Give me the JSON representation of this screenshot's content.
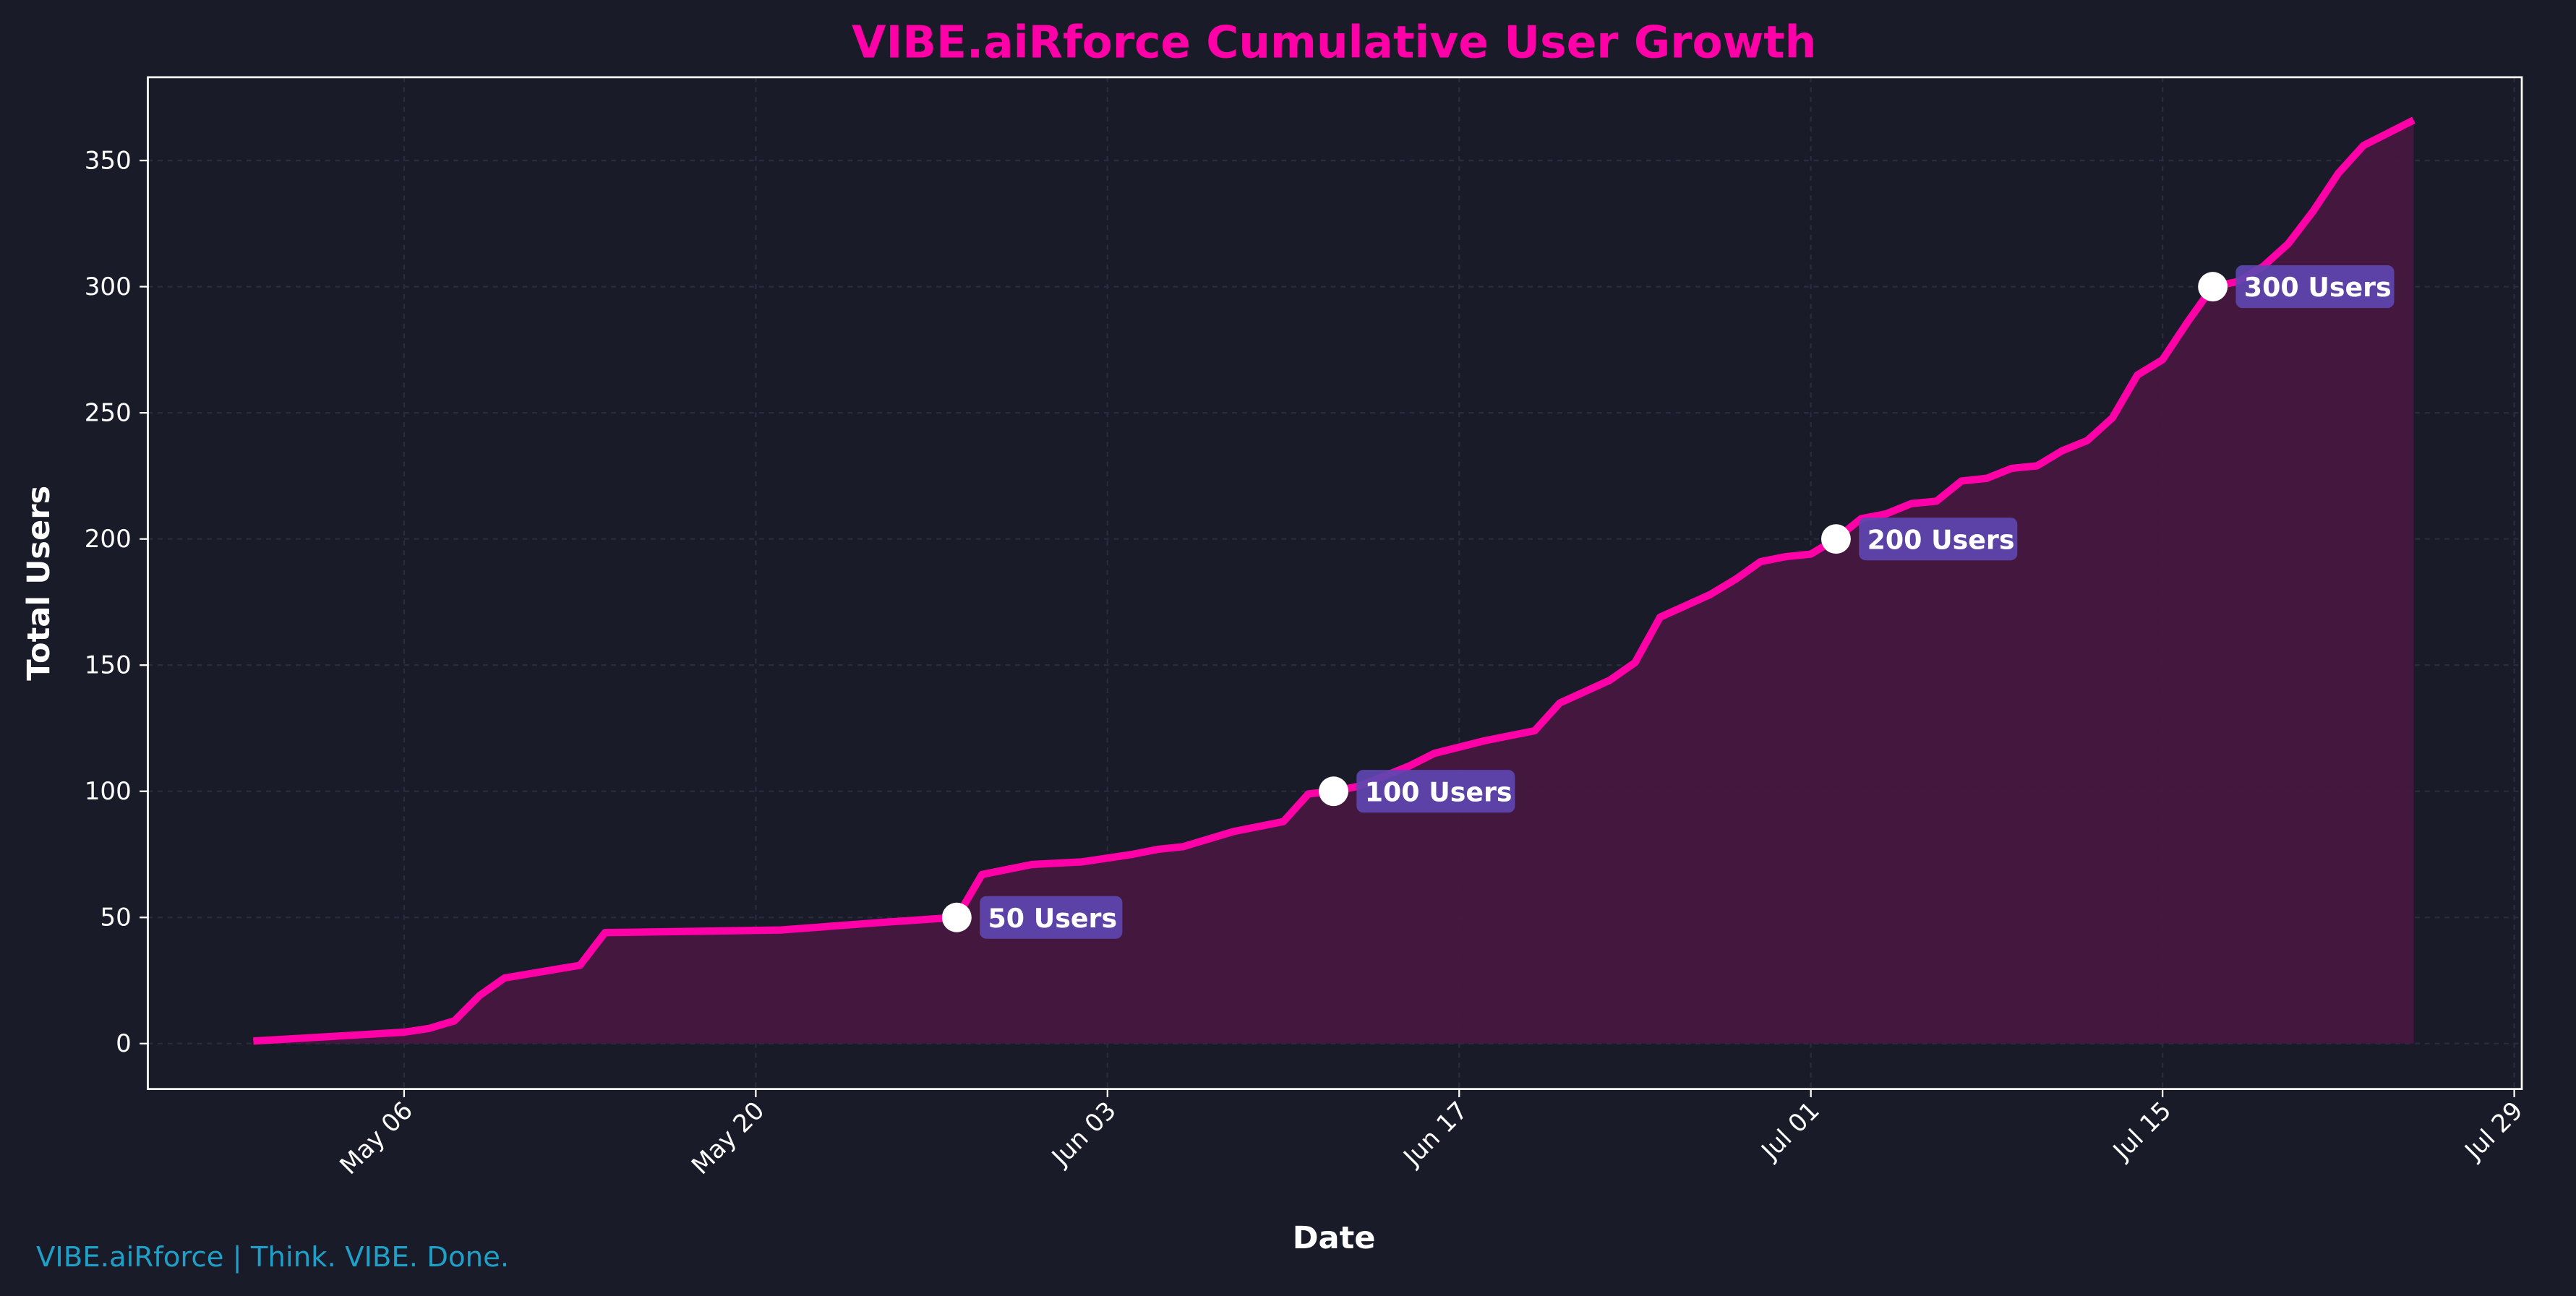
{
  "chart_data": {
    "type": "area",
    "title": "VIBE.aiRforce Cumulative User Growth",
    "xlabel": "Date",
    "ylabel": "Total Users",
    "x_unit": "days since Apr 30",
    "x": [
      0,
      6,
      7,
      8,
      9,
      10,
      13,
      14,
      21,
      25,
      28,
      29,
      31,
      33,
      35,
      36,
      37,
      39,
      41,
      42,
      43,
      44,
      46,
      47,
      49,
      51,
      52,
      54,
      55,
      56,
      58,
      59,
      60,
      61,
      62,
      63,
      64,
      65,
      66,
      67,
      68,
      69,
      70,
      71,
      72,
      73,
      74,
      75,
      76,
      77,
      78,
      79,
      80,
      81,
      82,
      83,
      84,
      85,
      86
    ],
    "values": [
      1,
      4.5,
      6,
      9,
      19,
      26,
      31,
      44,
      45,
      48,
      50,
      67,
      71,
      72,
      75,
      77,
      78,
      84,
      88,
      99,
      100,
      102,
      110,
      115,
      120,
      124,
      135,
      144,
      151,
      169,
      178,
      184,
      191,
      193,
      194,
      200,
      208,
      210,
      214,
      215,
      223,
      224,
      228,
      229,
      235,
      239,
      248,
      265,
      271,
      286,
      300,
      302,
      308,
      317,
      330,
      345,
      356,
      361,
      366
    ],
    "xlim": [
      -4.2,
      90.3
    ],
    "ylim": [
      -18,
      383
    ],
    "xticks": [
      {
        "x": 6,
        "label": "May 06"
      },
      {
        "x": 20,
        "label": "May 20"
      },
      {
        "x": 34,
        "label": "Jun 03"
      },
      {
        "x": 48,
        "label": "Jun 17"
      },
      {
        "x": 62,
        "label": "Jul 01"
      },
      {
        "x": 76,
        "label": "Jul 15"
      },
      {
        "x": 90,
        "label": "Jul 29"
      }
    ],
    "yticks": [
      0,
      50,
      100,
      150,
      200,
      250,
      300,
      350
    ],
    "grid": true,
    "milestones": [
      {
        "x": 28,
        "y": 50,
        "label": "50 Users"
      },
      {
        "x": 43,
        "y": 100,
        "label": "100 Users"
      },
      {
        "x": 63,
        "y": 200,
        "label": "200 Users"
      },
      {
        "x": 78,
        "y": 300,
        "label": "300 Users"
      }
    ],
    "colors": {
      "background": "#1a1b29",
      "line": "#ff00a8",
      "fill": "#46173f",
      "label_box": "#5e45b0",
      "title": "#ff00a8",
      "footer": "#1ea0c8"
    }
  },
  "footer": "VIBE.aiRforce | Think. VIBE. Done."
}
